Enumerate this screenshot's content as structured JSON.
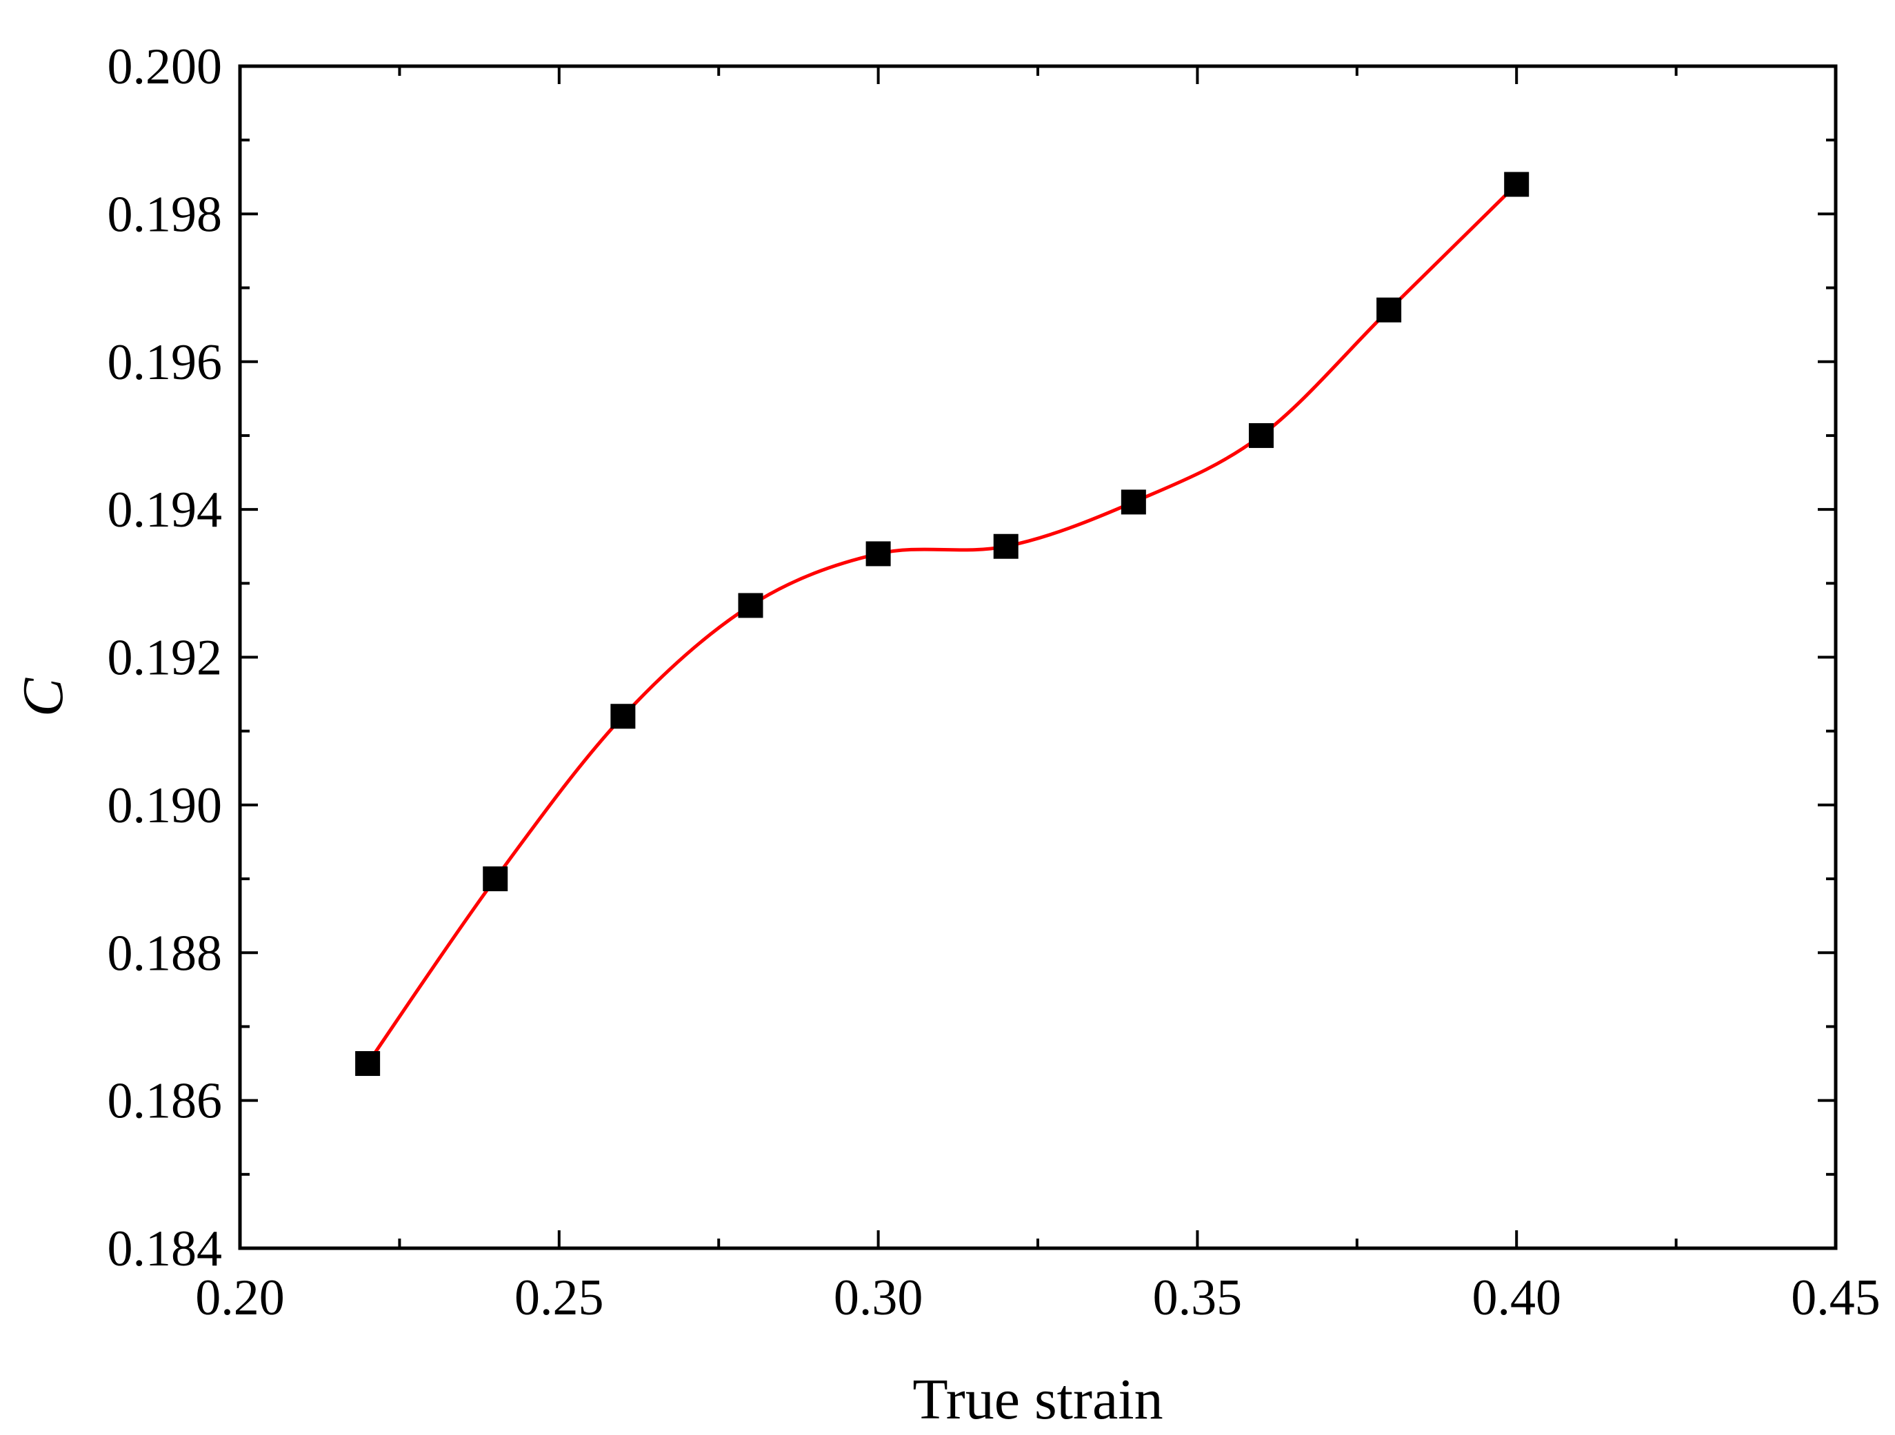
{
  "chart_data": {
    "type": "scatter",
    "xlabel": "True strain",
    "ylabel": "C",
    "xlim": [
      0.2,
      0.45
    ],
    "ylim": [
      0.184,
      0.2
    ],
    "x_ticks": [
      "0.20",
      "0.25",
      "0.30",
      "0.35",
      "0.40",
      "0.45"
    ],
    "y_ticks": [
      "0.184",
      "0.186",
      "0.188",
      "0.190",
      "0.192",
      "0.194",
      "0.196",
      "0.198",
      "0.200"
    ],
    "grid": false,
    "legend": "none",
    "series": [
      {
        "marker": "square",
        "color": "#000000",
        "x": [
          0.22,
          0.24,
          0.26,
          0.28,
          0.3,
          0.32,
          0.34,
          0.36,
          0.38,
          0.4
        ],
        "y": [
          0.1865,
          0.189,
          0.1912,
          0.1927,
          0.1934,
          0.1935,
          0.1941,
          0.195,
          0.1967,
          0.1984
        ]
      },
      {
        "line": "smooth",
        "color": "#ff0000",
        "x": [
          0.22,
          0.24,
          0.26,
          0.28,
          0.3,
          0.32,
          0.34,
          0.36,
          0.38,
          0.4
        ],
        "y": [
          0.1865,
          0.189,
          0.1912,
          0.1927,
          0.1934,
          0.1935,
          0.1941,
          0.195,
          0.1967,
          0.1984
        ]
      }
    ]
  }
}
